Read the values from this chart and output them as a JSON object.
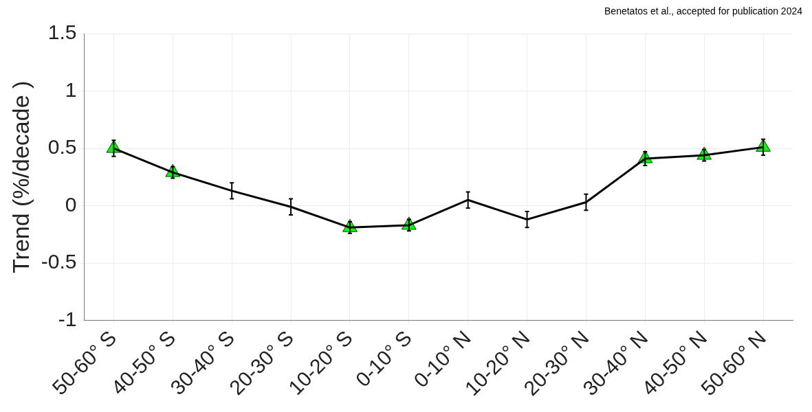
{
  "chart_data": {
    "type": "line",
    "ylabel": "Trend (%/decade )",
    "categories": [
      "50-60° S",
      "40-50° S",
      "30-40° S",
      "20-30° S",
      "10-20° S",
      "0-10° S",
      "0-10° N",
      "10-20° N",
      "20-30° N",
      "30-40° N",
      "40-50° N",
      "50-60° N"
    ],
    "series": [
      {
        "type": "line",
        "color": "#000000",
        "marker": "none",
        "values": [
          0.5,
          0.29,
          0.13,
          -0.01,
          -0.19,
          -0.17,
          0.05,
          -0.12,
          0.03,
          0.41,
          0.44,
          0.51
        ],
        "errors": [
          0.07,
          0.05,
          0.07,
          0.07,
          0.05,
          0.05,
          0.07,
          0.07,
          0.07,
          0.06,
          0.05,
          0.07
        ]
      },
      {
        "type": "scatter",
        "color": "#00ff00",
        "marker": "triangle",
        "x": [
          "50-60° S",
          "40-50° S",
          "30-40° S",
          "20-30° S",
          "10-20° S",
          "0-10° S",
          "0-10° N",
          "10-20° N",
          "20-30° N",
          "30-40° N",
          "40-50° N",
          "50-60° N"
        ],
        "values": [
          0.5,
          0.29,
          null,
          null,
          -0.19,
          -0.17,
          null,
          null,
          null,
          0.41,
          0.44,
          0.51
        ]
      }
    ],
    "ylim": [
      -1,
      1.5
    ],
    "yticks": [
      -1,
      -0.5,
      0,
      0.5,
      1,
      1.5
    ],
    "grid": true,
    "legend": false,
    "annotations": [
      "Benetatos et al., accepted for publication 2024"
    ]
  }
}
